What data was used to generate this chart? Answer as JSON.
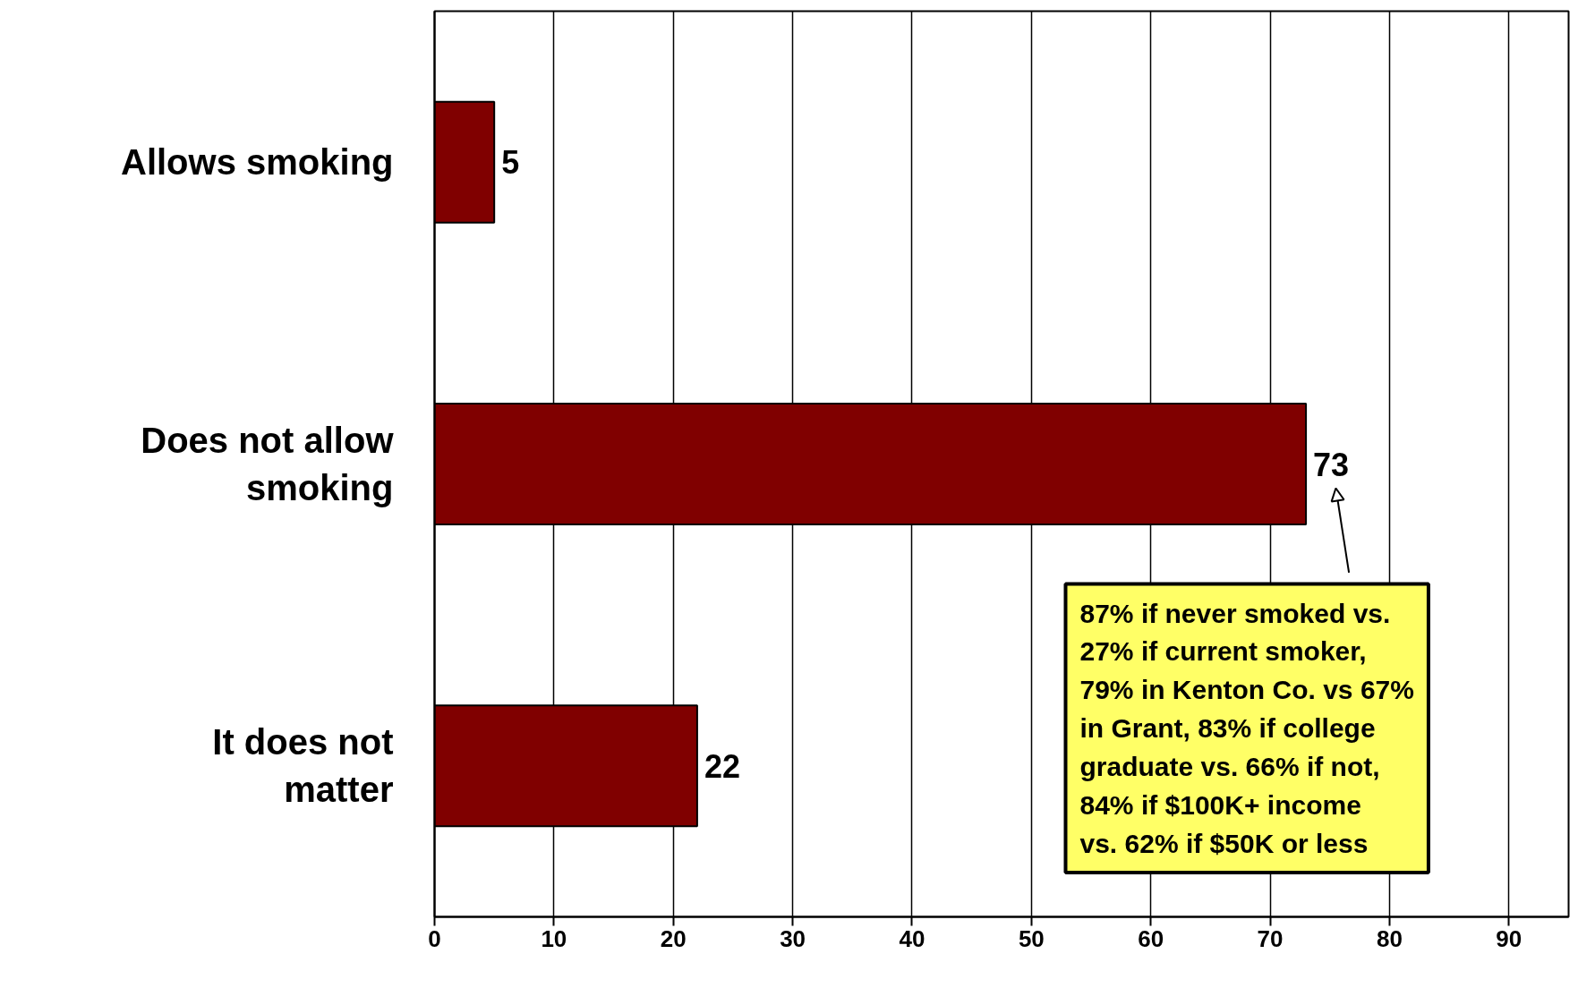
{
  "chart_data": {
    "type": "bar",
    "orientation": "horizontal",
    "categories": [
      "Allows smoking",
      "Does not allow smoking",
      "It does not matter"
    ],
    "values": [
      5,
      73,
      22
    ],
    "color": "#800000",
    "data_labels": true,
    "xlim": [
      0,
      95
    ],
    "xticks": [
      0,
      10,
      20,
      30,
      40,
      50,
      60,
      70,
      80,
      90
    ],
    "grid": "x",
    "annotations": [
      "87% if never smoked vs.\n27% if current smoker,\n79% in Kenton Co. vs 67%\nin Grant, 83% if college\ngraduate vs. 66% if not,\n84% if $100K+ income\nvs. 62% if $50K or less"
    ]
  }
}
